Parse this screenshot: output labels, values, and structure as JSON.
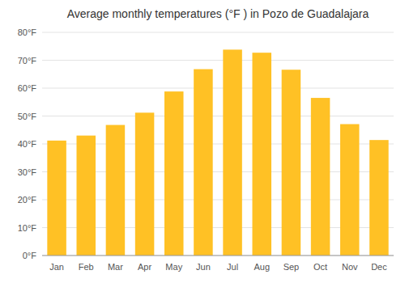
{
  "chart_data": {
    "type": "bar",
    "title": "Average monthly temperatures (°F ) in Pozo de Guadalajara",
    "categories": [
      "Jan",
      "Feb",
      "Mar",
      "Apr",
      "May",
      "Jun",
      "Jul",
      "Aug",
      "Sep",
      "Oct",
      "Nov",
      "Dec"
    ],
    "values": [
      41.2,
      43.0,
      46.8,
      51.2,
      58.8,
      66.8,
      73.8,
      72.7,
      66.6,
      56.5,
      47.1,
      41.4
    ],
    "color": "#FFC125",
    "ylim": [
      0,
      80
    ],
    "yticks": [
      {
        "value": 0,
        "label": "0°F"
      },
      {
        "value": 10,
        "label": "10°F"
      },
      {
        "value": 20,
        "label": "20°F"
      },
      {
        "value": 30,
        "label": "30°F"
      },
      {
        "value": 40,
        "label": "40°F"
      },
      {
        "value": 50,
        "label": "50°F"
      },
      {
        "value": 60,
        "label": "60°F"
      },
      {
        "value": 70,
        "label": "70°F"
      },
      {
        "value": 80,
        "label": "80°F"
      }
    ],
    "grid": true
  }
}
